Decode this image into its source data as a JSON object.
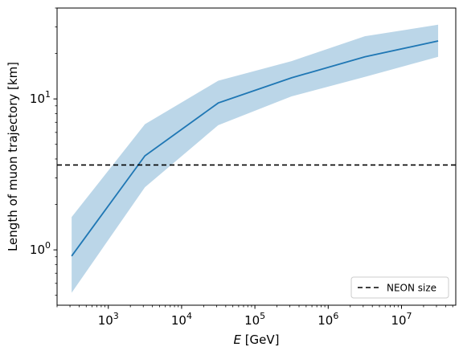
{
  "chart_data": {
    "type": "line",
    "xscale": "log",
    "yscale": "log",
    "xlim": [
      200,
      55000000
    ],
    "ylim": [
      0.43,
      40
    ],
    "xlabel_italic": "E",
    "xlabel_rest": " [GeV]",
    "ylabel": "Length of muon trajectory [km]",
    "x_ticks": [
      {
        "value": 1000,
        "base": "10",
        "exp": "3"
      },
      {
        "value": 10000,
        "base": "10",
        "exp": "4"
      },
      {
        "value": 100000,
        "base": "10",
        "exp": "5"
      },
      {
        "value": 1000000,
        "base": "10",
        "exp": "6"
      },
      {
        "value": 10000000,
        "base": "10",
        "exp": "7"
      }
    ],
    "y_ticks": [
      {
        "value": 1,
        "base": "10",
        "exp": "0"
      },
      {
        "value": 10,
        "base": "10",
        "exp": "1"
      }
    ],
    "series": [
      {
        "color": "#1f77b4",
        "band_color": "#1f77b4",
        "band_opacity": 0.3,
        "x": [
          316,
          3160,
          31600,
          316000,
          3160000,
          31600000
        ],
        "y": [
          0.91,
          4.2,
          9.4,
          13.8,
          19.0,
          24.2
        ],
        "y_lower": [
          0.52,
          2.6,
          6.7,
          10.4,
          14.0,
          19.0
        ],
        "y_upper": [
          1.65,
          6.8,
          13.2,
          17.8,
          26.0,
          31.0
        ]
      }
    ],
    "hlines": [
      {
        "name": "NEON size",
        "y": 3.65,
        "color": "#000000",
        "style": "dashed"
      }
    ],
    "legend": {
      "placement": "lower-right",
      "entries": [
        "NEON size"
      ]
    },
    "grid": false
  }
}
